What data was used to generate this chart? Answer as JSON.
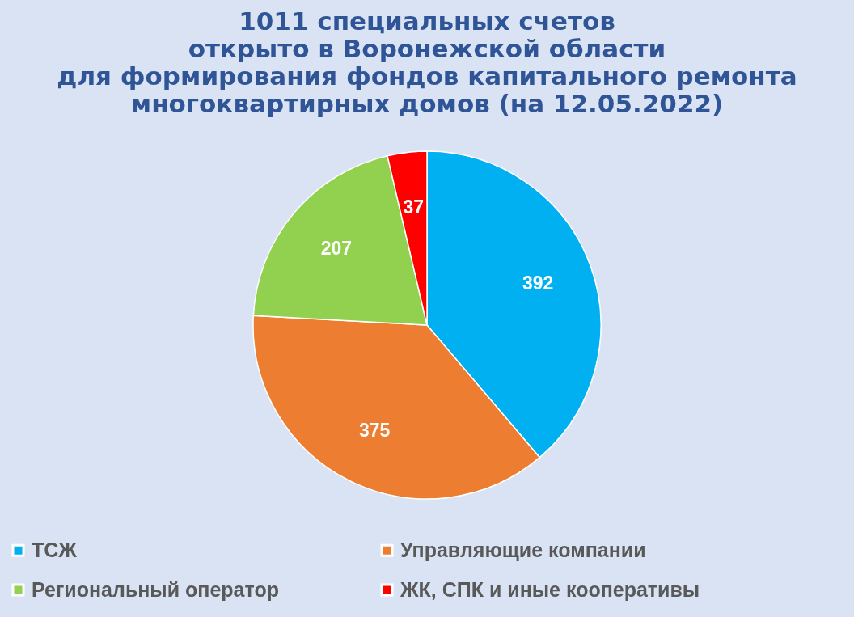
{
  "chart_data": {
    "type": "pie",
    "title": "1011 специальных счетов\nоткрыто в Воронежской области\nдля формирования фондов капитального ремонта\nмногоквартирных домов (на 12.05.2022)",
    "categories": [
      "ТСЖ",
      "Управляющие компании",
      "Региональный оператор",
      "ЖК, СПК и иные кооперативы"
    ],
    "values": [
      392,
      375,
      207,
      37
    ],
    "colors": [
      "#00b0f0",
      "#ed7d31",
      "#92d050",
      "#ff0000"
    ],
    "data_labels": true,
    "legend": "bottom"
  }
}
